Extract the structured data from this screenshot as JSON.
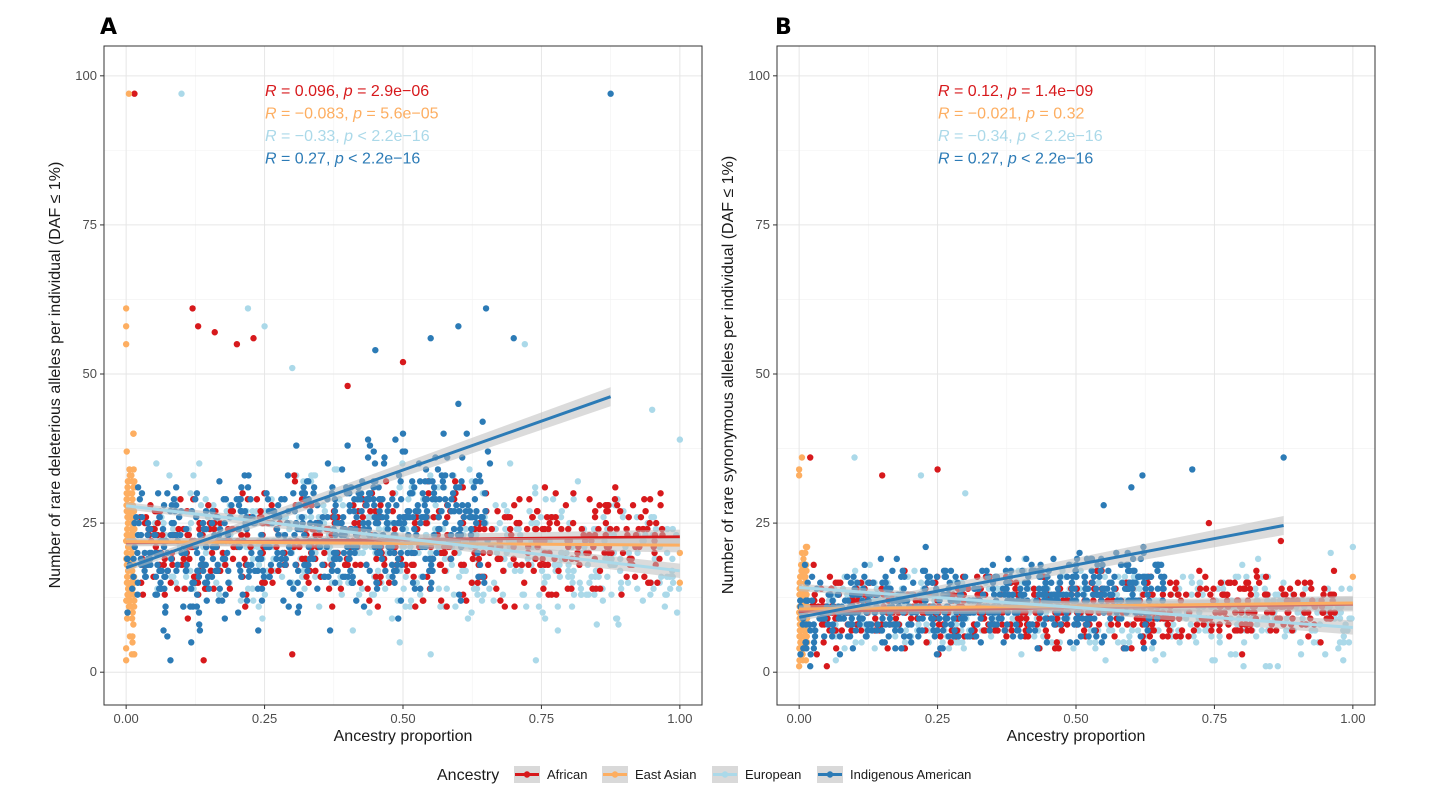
{
  "chart_data": [
    {
      "type": "scatter",
      "panel_label": "A",
      "xlabel": "Ancestry proportion",
      "ylabel": "Number of rare deleterious alleles per individual (DAF ≤ 1%)",
      "xlim": [
        -0.04,
        1.04
      ],
      "ylim": [
        -5.5,
        105
      ],
      "x_ticks": [
        0,
        0.25,
        0.5,
        0.75,
        1.0
      ],
      "x_tick_labels": [
        "0.00",
        "0.25",
        "0.50",
        "0.75",
        "1.00"
      ],
      "y_ticks": [
        0,
        25,
        50,
        75,
        100
      ],
      "y_tick_labels": [
        "0",
        "25",
        "50",
        "75",
        "100"
      ],
      "grid": true,
      "series": [
        {
          "name": "African",
          "color": "#d7191c",
          "stat": {
            "R": "R",
            "r_text": " = 0.096, ",
            "p": "p",
            "p_text": " = 2.9e−06"
          },
          "fit": {
            "x": [
              0.0,
              1.0
            ],
            "y": [
              21.7,
              22.7
            ]
          },
          "cloud": {
            "x_min": 0.02,
            "x_max": 0.97,
            "y_center": 21,
            "y_spread": 9,
            "n": 520
          },
          "points": [
            [
              0.015,
              97
            ],
            [
              0.12,
              61
            ],
            [
              0.13,
              58
            ],
            [
              0.16,
              57
            ],
            [
              0.2,
              55
            ],
            [
              0.23,
              56
            ],
            [
              0.5,
              52
            ],
            [
              0.14,
              2
            ],
            [
              0.3,
              3
            ],
            [
              0.87,
              27
            ],
            [
              0.65,
              30
            ],
            [
              0.4,
              48
            ]
          ]
        },
        {
          "name": "East Asian",
          "color": "#fdae61",
          "stat": {
            "R": "R",
            "r_text": " = −0.083, ",
            "p": "p",
            "p_text": " = 5.6e−05"
          },
          "fit": {
            "x": [
              0.0,
              1.0
            ],
            "y": [
              21.9,
              21.3
            ]
          },
          "cloud": {
            "x_min": 0.0,
            "x_max": 0.015,
            "y_center": 22,
            "y_spread": 16,
            "n": 130
          },
          "points": [
            [
              0.005,
              97
            ],
            [
              0.0,
              61
            ],
            [
              0.0,
              58
            ],
            [
              0.0,
              55
            ],
            [
              0.0,
              2
            ],
            [
              0.0,
              4
            ],
            [
              1.0,
              15
            ],
            [
              1.0,
              20
            ]
          ]
        },
        {
          "name": "European",
          "color": "#abd9e9",
          "stat": {
            "R": "R",
            "r_text": " = −0.33, ",
            "p": "p",
            "p_text": " < 2.2e−16"
          },
          "fit": {
            "x": [
              0.0,
              1.0
            ],
            "y": [
              27.9,
              17.0
            ]
          },
          "cloud": {
            "x_min": 0.05,
            "x_max": 1.0,
            "y_center": 20,
            "y_spread": 11,
            "n": 520
          },
          "points": [
            [
              0.1,
              97
            ],
            [
              0.22,
              61
            ],
            [
              0.25,
              58
            ],
            [
              0.3,
              51
            ],
            [
              0.72,
              55
            ],
            [
              0.95,
              44
            ],
            [
              0.74,
              2
            ],
            [
              0.55,
              3
            ],
            [
              1.0,
              39
            ],
            [
              0.85,
              8
            ]
          ]
        },
        {
          "name": "Indigenous American",
          "color": "#2c7bb6",
          "stat": {
            "R": "R",
            "r_text": " = 0.27, ",
            "p": "p",
            "p_text": " < 2.2e−16"
          },
          "fit": {
            "x": [
              0.0,
              0.875
            ],
            "y": [
              17.5,
              46.2
            ]
          },
          "cloud": {
            "x_min": 0.0,
            "x_max": 0.66,
            "y_center": 20,
            "y_spread": 12,
            "n": 620
          },
          "points": [
            [
              0.875,
              97
            ],
            [
              0.65,
              61
            ],
            [
              0.6,
              58
            ],
            [
              0.55,
              56
            ],
            [
              0.45,
              54
            ],
            [
              0.7,
              56
            ],
            [
              0.08,
              2
            ],
            [
              0.6,
              45
            ],
            [
              0.5,
              40
            ],
            [
              0.4,
              38
            ]
          ]
        }
      ]
    },
    {
      "type": "scatter",
      "panel_label": "B",
      "xlabel": "Ancestry proportion",
      "ylabel": "Number of rare synonymous alleles per individual (DAF ≤ 1%)",
      "xlim": [
        -0.04,
        1.04
      ],
      "ylim": [
        -5.5,
        105
      ],
      "x_ticks": [
        0,
        0.25,
        0.5,
        0.75,
        1.0
      ],
      "x_tick_labels": [
        "0.00",
        "0.25",
        "0.50",
        "0.75",
        "1.00"
      ],
      "y_ticks": [
        0,
        25,
        50,
        75,
        100
      ],
      "y_tick_labels": [
        "0",
        "25",
        "50",
        "75",
        "100"
      ],
      "grid": true,
      "series": [
        {
          "name": "African",
          "color": "#d7191c",
          "stat": {
            "R": "R",
            "r_text": " = 0.12, ",
            "p": "p",
            "p_text": " = 1.4e−09"
          },
          "fit": {
            "x": [
              0.0,
              1.0
            ],
            "y": [
              10.2,
              11.4
            ]
          },
          "cloud": {
            "x_min": 0.02,
            "x_max": 0.97,
            "y_center": 10,
            "y_spread": 6,
            "n": 520
          },
          "points": [
            [
              0.02,
              36
            ],
            [
              0.25,
              34
            ],
            [
              0.15,
              33
            ],
            [
              0.74,
              25
            ],
            [
              0.87,
              22
            ],
            [
              0.8,
              3
            ],
            [
              0.05,
              1
            ]
          ]
        },
        {
          "name": "East Asian",
          "color": "#fdae61",
          "stat": {
            "R": "R",
            "r_text": " = −0.021, ",
            "p": "p",
            "p_text": " = 0.32"
          },
          "fit": {
            "x": [
              0.0,
              1.0
            ],
            "y": [
              10.6,
              11.6
            ]
          },
          "cloud": {
            "x_min": 0.0,
            "x_max": 0.015,
            "y_center": 11,
            "y_spread": 9,
            "n": 120
          },
          "points": [
            [
              0.005,
              36
            ],
            [
              0.0,
              34
            ],
            [
              0.0,
              33
            ],
            [
              0.0,
              1
            ],
            [
              1.0,
              16
            ]
          ]
        },
        {
          "name": "European",
          "color": "#abd9e9",
          "stat": {
            "R": "R",
            "r_text": " = −0.34, ",
            "p": "p",
            "p_text": " < 2.2e−16"
          },
          "fit": {
            "x": [
              0.0,
              1.0
            ],
            "y": [
              14.2,
              7.5
            ]
          },
          "cloud": {
            "x_min": 0.05,
            "x_max": 1.0,
            "y_center": 10,
            "y_spread": 7,
            "n": 520
          },
          "points": [
            [
              0.1,
              36
            ],
            [
              0.22,
              33
            ],
            [
              0.3,
              30
            ],
            [
              0.96,
              20
            ],
            [
              1.0,
              21
            ],
            [
              0.85,
              1
            ]
          ]
        },
        {
          "name": "Indigenous American",
          "color": "#2c7bb6",
          "stat": {
            "R": "R",
            "r_text": " = 0.27, ",
            "p": "p",
            "p_text": " < 2.2e−16"
          },
          "fit": {
            "x": [
              0.0,
              0.875
            ],
            "y": [
              9.2,
              24.6
            ]
          },
          "cloud": {
            "x_min": 0.0,
            "x_max": 0.66,
            "y_center": 10,
            "y_spread": 7,
            "n": 600
          },
          "points": [
            [
              0.875,
              36
            ],
            [
              0.62,
              33
            ],
            [
              0.6,
              31
            ],
            [
              0.71,
              34
            ],
            [
              0.55,
              28
            ],
            [
              0.02,
              1
            ]
          ]
        }
      ]
    }
  ],
  "legend": {
    "title": "Ancestry",
    "placement": "bottom",
    "items": [
      {
        "label": "African",
        "color": "#d7191c"
      },
      {
        "label": "East Asian",
        "color": "#fdae61"
      },
      {
        "label": "European",
        "color": "#abd9e9"
      },
      {
        "label": "Indigenous American",
        "color": "#2c7bb6"
      }
    ]
  }
}
